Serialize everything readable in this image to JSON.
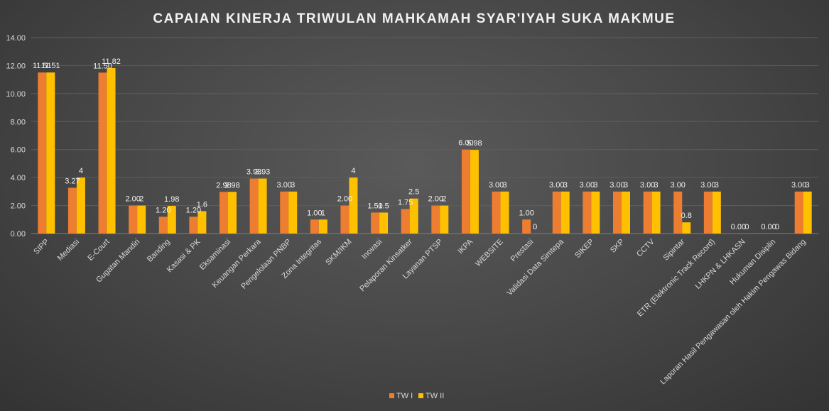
{
  "chart_data": {
    "type": "bar",
    "title": "CAPAIAN KINERJA TRIWULAN MAHKAMAH SYAR'IYAH SUKA MAKMUE",
    "xlabel": "",
    "ylabel": "",
    "ylim": [
      0,
      14
    ],
    "yticks": [
      "0.00",
      "2.00",
      "4.00",
      "6.00",
      "8.00",
      "10.00",
      "12.00",
      "14.00"
    ],
    "grid": true,
    "legend_position": "bottom",
    "categories": [
      "SIPP",
      "Mediasi",
      "E-Court",
      "Gugatan Mandiri",
      "Banding",
      "Kasasi & PK",
      "Eksaminasi",
      "Keuangan Perkara",
      "Pengelolaan PNBP",
      "Zona Integritas",
      "SKM/IKM",
      "Inovasi",
      "Pelaporan Kinsatker",
      "Layanan PTSP",
      "IKPA",
      "WEBSITE",
      "Prestasi",
      "Validasi Data Simtepa",
      "SIKEP",
      "SKP",
      "CCTV",
      "Sipintar",
      "ETR (Elektronic Track Record)",
      "LHKPN & LHKASN",
      "Hukuman Disiplin",
      "Laporan Hasil Pengawasan oleh Hakim Pengawas Bidang"
    ],
    "series": [
      {
        "name": "TW I",
        "color": "#ED7D31",
        "values": [
          11.51,
          3.27,
          11.5,
          2.0,
          1.2,
          1.2,
          2.98,
          3.93,
          3.0,
          1.0,
          2.0,
          1.5,
          1.75,
          2.0,
          6.0,
          3.0,
          1.0,
          3.0,
          3.0,
          3.0,
          3.0,
          3.0,
          3.0,
          0.0,
          0.0,
          3.0
        ],
        "labels": [
          "11.51",
          "3.27",
          "11.50",
          "2.00",
          "1.20",
          "1.20",
          "2.98",
          "3.93",
          "3.00",
          "1.00",
          "2.00",
          "1.50",
          "1.75",
          "2.00",
          "6.00",
          "3.00",
          "1.00",
          "3.00",
          "3.00",
          "3.00",
          "3.00",
          "3.00",
          "3.00",
          "0.00",
          "0.00",
          "3.00"
        ]
      },
      {
        "name": "TW II",
        "color": "#FFC000",
        "values": [
          11.51,
          4,
          11.82,
          2,
          1.98,
          1.6,
          2.98,
          3.93,
          3,
          1,
          4,
          1.5,
          2.5,
          2,
          5.98,
          3,
          0,
          3,
          3,
          3,
          3,
          0.8,
          3,
          0,
          0,
          3
        ],
        "labels": [
          "11.51",
          "4",
          "11.82",
          "2",
          "1.98",
          "1.6",
          "2.98",
          "3.93",
          "3",
          "1",
          "4",
          "1.5",
          "2.5",
          "2",
          "5.98",
          "3",
          "0",
          "3",
          "3",
          "3",
          "3",
          "0.8",
          "3",
          "0",
          "0",
          "3"
        ]
      }
    ]
  }
}
